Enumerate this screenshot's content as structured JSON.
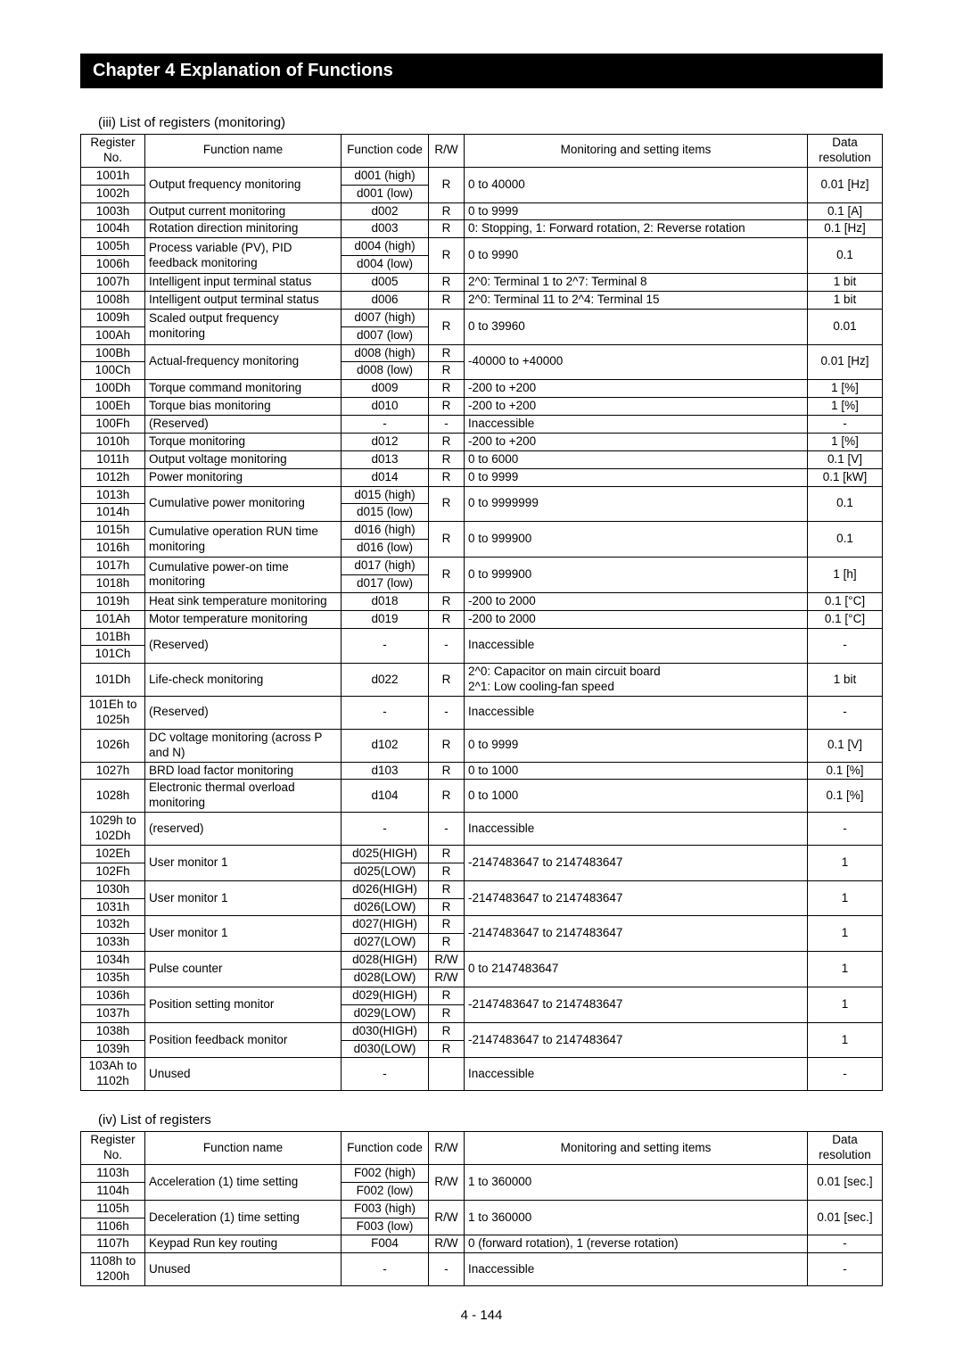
{
  "chapterTitle": "Chapter 4 Explanation of Functions",
  "pageNumber": "4 - 144",
  "tableA": {
    "caption": "(iii) List of registers (monitoring)",
    "headers": [
      "Register\nNo.",
      "Function name",
      "Function code",
      "R/W",
      "Monitoring and setting items",
      "Data\nresolution"
    ],
    "rows": [
      {
        "reg": [
          "1001h",
          "1002h"
        ],
        "fn": "Output frequency monitoring",
        "fc": [
          "d001 (high)",
          "d001 (low)"
        ],
        "rw": [
          "R"
        ],
        "item": "0 to 40000",
        "res": "0.01 [Hz]"
      },
      {
        "reg": [
          "1003h"
        ],
        "fn": "Output current monitoring",
        "fc": [
          "d002"
        ],
        "rw": [
          "R"
        ],
        "item": "0 to 9999",
        "res": "0.1 [A]"
      },
      {
        "reg": [
          "1004h"
        ],
        "fn": "Rotation direction minitoring",
        "fc": [
          "d003"
        ],
        "rw": [
          "R"
        ],
        "item": "0: Stopping, 1: Forward rotation, 2: Reverse rotation",
        "res": "0.1 [Hz]"
      },
      {
        "reg": [
          "1005h",
          "1006h"
        ],
        "fn": "Process variable (PV), PID feedback monitoring",
        "fc": [
          "d004 (high)",
          "d004 (low)"
        ],
        "rw": [
          "R"
        ],
        "item": "0 to 9990",
        "res": "0.1"
      },
      {
        "reg": [
          "1007h"
        ],
        "fn": "Intelligent input terminal status",
        "fc": [
          "d005"
        ],
        "rw": [
          "R"
        ],
        "item": "2^0: Terminal 1 to 2^7: Terminal 8",
        "res": "1 bit"
      },
      {
        "reg": [
          "1008h"
        ],
        "fn": "Intelligent output terminal status",
        "fc": [
          "d006"
        ],
        "rw": [
          "R"
        ],
        "item": "2^0: Terminal 11 to 2^4: Terminal 15",
        "res": "1 bit"
      },
      {
        "reg": [
          "1009h",
          "100Ah"
        ],
        "fn": "Scaled output frequency monitoring",
        "fc": [
          "d007 (high)",
          "d007 (low)"
        ],
        "rw": [
          "R"
        ],
        "item": "0 to 39960",
        "res": "0.01"
      },
      {
        "reg": [
          "100Bh",
          "100Ch"
        ],
        "fn": "Actual-frequency monitoring",
        "fc": [
          "d008 (high)",
          "d008 (low)"
        ],
        "rw": [
          "R",
          "R"
        ],
        "item": "-40000 to +40000",
        "res": "0.01 [Hz]"
      },
      {
        "reg": [
          "100Dh"
        ],
        "fn": "Torque command monitoring",
        "fc": [
          "d009"
        ],
        "rw": [
          "R"
        ],
        "item": "-200 to +200",
        "res": "1 [%]"
      },
      {
        "reg": [
          "100Eh"
        ],
        "fn": "Torque bias monitoring",
        "fc": [
          "d010"
        ],
        "rw": [
          "R"
        ],
        "item": "-200 to +200",
        "res": "1 [%]"
      },
      {
        "reg": [
          "100Fh"
        ],
        "fn": "(Reserved)",
        "fc": [
          "-"
        ],
        "rw": [
          "-"
        ],
        "item": "Inaccessible",
        "res": "-"
      },
      {
        "reg": [
          "1010h"
        ],
        "fn": "Torque monitoring",
        "fc": [
          "d012"
        ],
        "rw": [
          "R"
        ],
        "item": "-200 to +200",
        "res": "1 [%]"
      },
      {
        "reg": [
          "1011h"
        ],
        "fn": "Output voltage monitoring",
        "fc": [
          "d013"
        ],
        "rw": [
          "R"
        ],
        "item": "0 to 6000",
        "res": "0.1 [V]"
      },
      {
        "reg": [
          "1012h"
        ],
        "fn": "Power monitoring",
        "fc": [
          "d014"
        ],
        "rw": [
          "R"
        ],
        "item": "0 to 9999",
        "res": "0.1 [kW]"
      },
      {
        "reg": [
          "1013h",
          "1014h"
        ],
        "fn": "Cumulative power monitoring",
        "fc": [
          "d015 (high)",
          "d015 (low)"
        ],
        "rw": [
          "R"
        ],
        "item": "0 to 9999999",
        "res": "0.1"
      },
      {
        "reg": [
          "1015h",
          "1016h"
        ],
        "fn": "Cumulative operation RUN time monitoring",
        "fc": [
          "d016 (high)",
          "d016 (low)"
        ],
        "rw": [
          "R"
        ],
        "item": "0 to 999900",
        "res": "0.1"
      },
      {
        "reg": [
          "1017h",
          "1018h"
        ],
        "fn": "Cumulative power-on time monitoring",
        "fc": [
          "d017 (high)",
          "d017 (low)"
        ],
        "rw": [
          "R"
        ],
        "item": "0 to 999900",
        "res": "1 [h]"
      },
      {
        "reg": [
          "1019h"
        ],
        "fn": "Heat sink temperature monitoring",
        "fc": [
          "d018"
        ],
        "rw": [
          "R"
        ],
        "item": "-200 to 2000",
        "res": "0.1 [°C]"
      },
      {
        "reg": [
          "101Ah"
        ],
        "fn": "Motor temperature monitoring",
        "fc": [
          "d019"
        ],
        "rw": [
          "R"
        ],
        "item": "-200 to 2000",
        "res": "0.1 [°C]"
      },
      {
        "reg": [
          "101Bh",
          "101Ch"
        ],
        "fn": "(Reserved)",
        "fc": [
          "-"
        ],
        "rw": [
          "-"
        ],
        "item": "Inaccessible",
        "res": "-"
      },
      {
        "reg": [
          "101Dh"
        ],
        "fn": "Life-check monitoring",
        "fc": [
          "d022"
        ],
        "rw": [
          "R"
        ],
        "item": "2^0: Capacitor on main circuit board\n2^1: Low cooling-fan speed",
        "res": "1 bit"
      },
      {
        "reg": [
          "101Eh to 1025h"
        ],
        "fn": "(Reserved)",
        "fc": [
          "-"
        ],
        "rw": [
          "-"
        ],
        "item": "Inaccessible",
        "res": "-"
      },
      {
        "reg": [
          "1026h"
        ],
        "fn": "DC voltage monitoring (across P and N)",
        "fc": [
          "d102"
        ],
        "rw": [
          "R"
        ],
        "item": "0 to 9999",
        "res": "0.1 [V]"
      },
      {
        "reg": [
          "1027h"
        ],
        "fn": "BRD load factor monitoring",
        "fc": [
          "d103"
        ],
        "rw": [
          "R"
        ],
        "item": "0 to 1000",
        "res": "0.1 [%]"
      },
      {
        "reg": [
          "1028h"
        ],
        "fn": "Electronic thermal overload monitoring",
        "fc": [
          "d104"
        ],
        "rw": [
          "R"
        ],
        "item": "0 to 1000",
        "res": "0.1 [%]"
      },
      {
        "reg": [
          "1029h to 102Dh"
        ],
        "fn": "(reserved)",
        "fc": [
          "-"
        ],
        "rw": [
          "-"
        ],
        "item": "Inaccessible",
        "res": "-"
      },
      {
        "reg": [
          "102Eh",
          "102Fh"
        ],
        "fn": "User monitor 1",
        "fc": [
          "d025(HIGH)",
          "d025(LOW)"
        ],
        "rw": [
          "R",
          "R"
        ],
        "item": "-2147483647 to 2147483647",
        "res": "1"
      },
      {
        "reg": [
          "1030h",
          "1031h"
        ],
        "fn": "User monitor 1",
        "fc": [
          "d026(HIGH)",
          "d026(LOW)"
        ],
        "rw": [
          "R",
          "R"
        ],
        "item": "-2147483647 to 2147483647",
        "res": "1"
      },
      {
        "reg": [
          "1032h",
          "1033h"
        ],
        "fn": "User monitor 1",
        "fc": [
          "d027(HIGH)",
          "d027(LOW)"
        ],
        "rw": [
          "R",
          "R"
        ],
        "item": "-2147483647 to 2147483647",
        "res": "1"
      },
      {
        "reg": [
          "1034h",
          "1035h"
        ],
        "fn": "Pulse counter",
        "fc": [
          "d028(HIGH)",
          "d028(LOW)"
        ],
        "rw": [
          "R/W",
          "R/W"
        ],
        "item": "0 to 2147483647",
        "res": "1"
      },
      {
        "reg": [
          "1036h",
          "1037h"
        ],
        "fn": "Position setting monitor",
        "fc": [
          "d029(HIGH)",
          "d029(LOW)"
        ],
        "rw": [
          "R",
          "R"
        ],
        "item": "-2147483647 to 2147483647",
        "res": "1"
      },
      {
        "reg": [
          "1038h",
          "1039h"
        ],
        "fn": "Position feedback monitor",
        "fc": [
          "d030(HIGH)",
          "d030(LOW)"
        ],
        "rw": [
          "R",
          "R"
        ],
        "item": "-2147483647 to 2147483647",
        "res": "1"
      },
      {
        "reg": [
          "103Ah to 1102h"
        ],
        "fn": "Unused",
        "fc": [
          "-"
        ],
        "rw": [
          ""
        ],
        "item": "Inaccessible",
        "res": "-"
      }
    ]
  },
  "tableB": {
    "caption": "(iv) List of registers",
    "headers": [
      "Register\nNo.",
      "Function name",
      "Function code",
      "R/W",
      "Monitoring and setting items",
      "Data\nresolution"
    ],
    "rows": [
      {
        "reg": [
          "1103h",
          "1104h"
        ],
        "fn": "Acceleration (1) time setting",
        "fc": [
          "F002 (high)",
          "F002 (low)"
        ],
        "rw": [
          "R/W"
        ],
        "item": "1 to 360000",
        "res": "0.01 [sec.]"
      },
      {
        "reg": [
          "1105h",
          "1106h"
        ],
        "fn": "Deceleration (1) time setting",
        "fc": [
          "F003 (high)",
          "F003 (low)"
        ],
        "rw": [
          "R/W"
        ],
        "item": "1 to 360000",
        "res": "0.01 [sec.]"
      },
      {
        "reg": [
          "1107h"
        ],
        "fn": "Keypad Run key routing",
        "fc": [
          "F004"
        ],
        "rw": [
          "R/W"
        ],
        "item": "0 (forward rotation), 1 (reverse rotation)",
        "res": "-"
      },
      {
        "reg": [
          "1108h to 1200h"
        ],
        "fn": "Unused",
        "fc": [
          "-"
        ],
        "rw": [
          "-"
        ],
        "item": "Inaccessible",
        "res": "-"
      }
    ]
  }
}
